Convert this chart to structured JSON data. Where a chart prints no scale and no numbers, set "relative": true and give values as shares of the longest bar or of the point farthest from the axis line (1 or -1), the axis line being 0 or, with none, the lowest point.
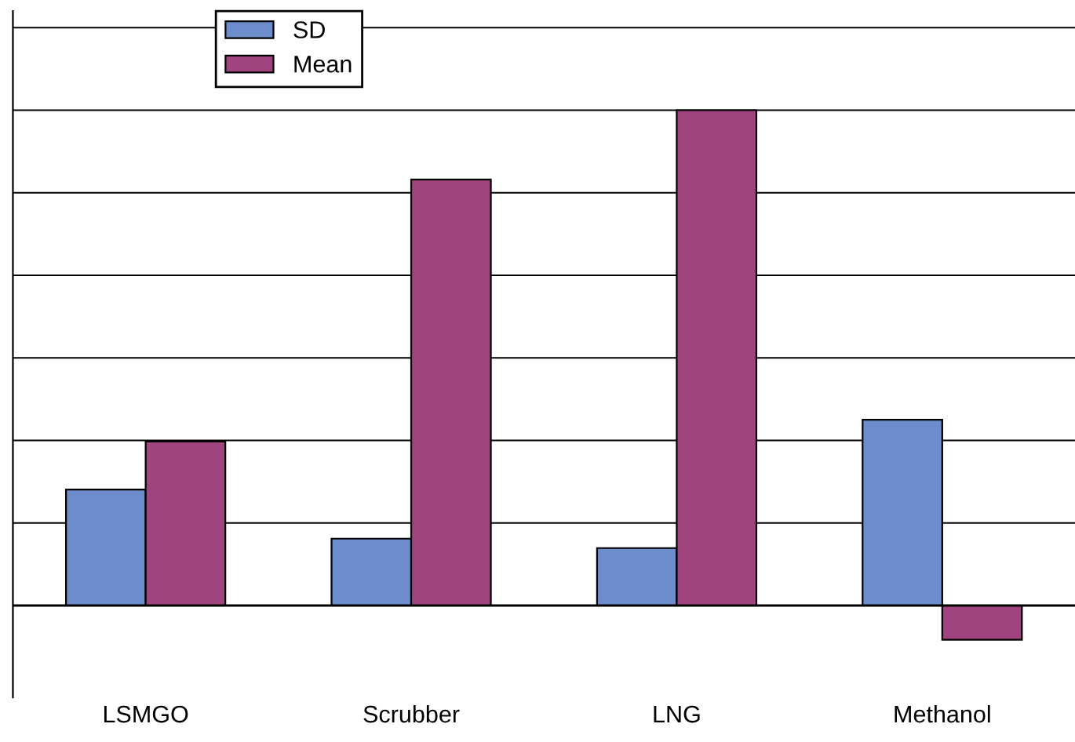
{
  "chart_data": {
    "type": "bar",
    "relative": true,
    "categories": [
      "LSMGO",
      "Scrubber",
      "LNG",
      "Methanol"
    ],
    "series": [
      {
        "name": "SD",
        "color": "#6d8ccb",
        "values": [
          0.234,
          0.135,
          0.116,
          0.375
        ]
      },
      {
        "name": "Mean",
        "color": "#a04480",
        "values": [
          0.331,
          0.86,
          1,
          -0.069
        ]
      }
    ],
    "grid": "y",
    "legend": "top",
    "tick_labels": "x"
  }
}
